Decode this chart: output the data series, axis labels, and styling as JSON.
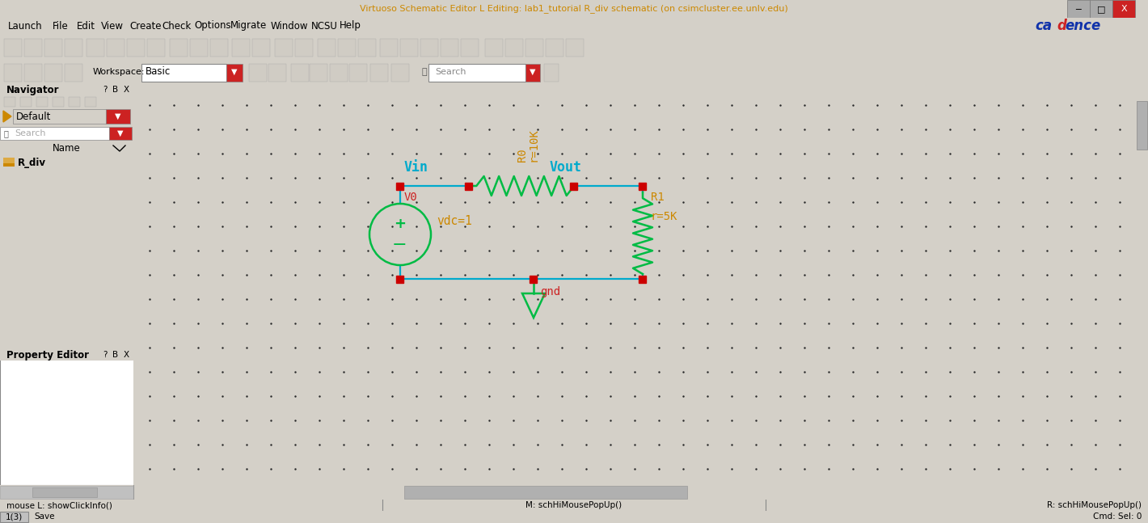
{
  "title": "Virtuoso Schematic Editor L Editing: lab1_tutorial R_div schematic (on csimcluster.ee.unlv.edu)",
  "title_color": "#cc8800",
  "bg_titlebar": "#aaaaaa",
  "bg_menubar": "#d4d0c8",
  "bg_toolbar": "#d4d0c8",
  "bg_canvas": "#000000",
  "bg_nav_content": "#ffffff",
  "bg_nav_header": "#d4d0c8",
  "bg_panel": "#d4d0c8",
  "red_bar_color": "#cc0000",
  "cadence_blue": "#1133aa",
  "cadence_red": "#cc2222",
  "close_btn_color": "#cc2222",
  "wire_color": "#00aacc",
  "resistor_color": "#00bb44",
  "dot_color": "#cc0000",
  "label_cyan": "#00aacc",
  "label_orange": "#cc8800",
  "label_red": "#cc2222",
  "label_green": "#00bb44",
  "V0_label": "V0",
  "vdc_label": "vdc=1",
  "Vin_label": "Vin",
  "Vout_label": "Vout",
  "R0_label": "R0",
  "R0_val": "r=10K",
  "R1_label": "R1",
  "R1_val": "r=5K",
  "gnd_label": "gnd",
  "nav_title": "Navigator",
  "nav_item": "R_div",
  "prop_title": "Property Editor",
  "workspace_label": "Workspace:",
  "workspace_val": "Basic",
  "status_left": "mouse L: showClickInfo()",
  "status_mid": "M: schHiMousePopUp()",
  "status_right": "R: schHiMousePopUp()",
  "bottom_left": "1(3)",
  "bottom_save": "Save",
  "bottom_cmd": "Cmd: Sel: 0",
  "menu_items": [
    "Launch",
    "File",
    "Edit",
    "View",
    "Create",
    "Check",
    "Options",
    "Migrate",
    "Window",
    "NCSU",
    "Help"
  ]
}
